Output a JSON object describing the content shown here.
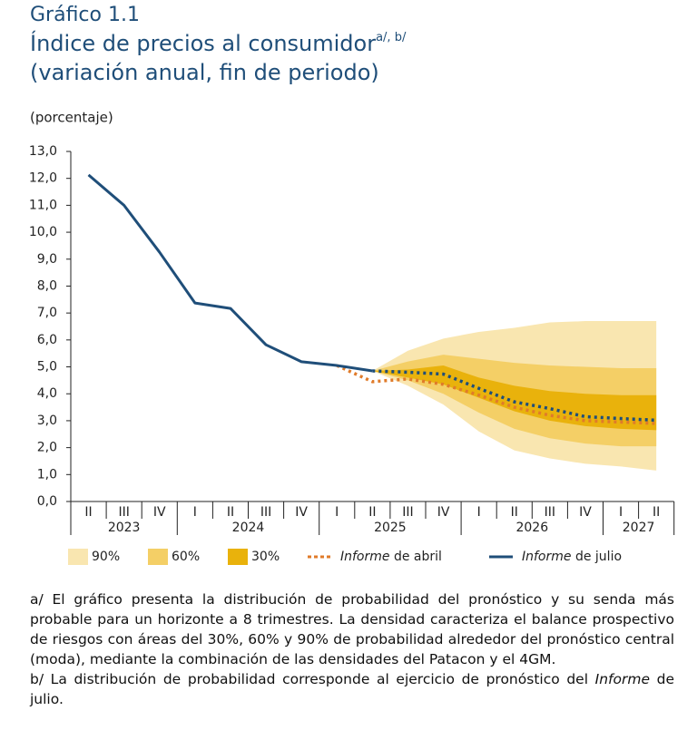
{
  "chart_data": {
    "type": "fan",
    "title": "Gráfico 1.1",
    "subtitle": "Índice de precios al consumidor",
    "subtitle_note": "a/, b/",
    "subtitle2": "(variación anual, fin de periodo)",
    "y_label": "(porcentaje)",
    "categories": [
      "II",
      "III",
      "IV",
      "I",
      "II",
      "III",
      "IV",
      "I",
      "II",
      "III",
      "IV",
      "I",
      "II",
      "III",
      "IV",
      "I",
      "II"
    ],
    "year_labels": [
      "2023",
      "2024",
      "2025",
      "2026",
      "2027"
    ],
    "ylim": [
      0,
      13
    ],
    "yticks": [
      {
        "value": 0,
        "label": "0,0"
      },
      {
        "value": 1,
        "label": "1,0"
      },
      {
        "value": 2,
        "label": "2,0"
      },
      {
        "value": 3,
        "label": "3,0"
      },
      {
        "value": 4,
        "label": "4,0"
      },
      {
        "value": 5,
        "label": "5,0"
      },
      {
        "value": 6,
        "label": "6,0"
      },
      {
        "value": 7,
        "label": "7,0"
      },
      {
        "value": 8,
        "label": "8,0"
      },
      {
        "value": 9,
        "label": "9,0"
      },
      {
        "value": 10,
        "label": "10,0"
      },
      {
        "value": 11,
        "label": "11,0"
      },
      {
        "value": 12,
        "label": "12,0"
      },
      {
        "value": 13,
        "label": "13,0"
      }
    ],
    "bands": [
      {
        "name": "90%",
        "color": "#f9e6b0",
        "upper": [
          null,
          null,
          null,
          null,
          null,
          null,
          null,
          null,
          4.85,
          5.6,
          6.05,
          6.3,
          6.45,
          6.65,
          6.7,
          6.7,
          6.7
        ],
        "lower": [
          null,
          null,
          null,
          null,
          null,
          null,
          null,
          null,
          4.85,
          4.3,
          3.6,
          2.6,
          1.9,
          1.6,
          1.4,
          1.3,
          1.15
        ]
      },
      {
        "name": "60%",
        "color": "#f4cf66",
        "upper": [
          null,
          null,
          null,
          null,
          null,
          null,
          null,
          null,
          4.85,
          5.2,
          5.45,
          5.3,
          5.15,
          5.05,
          5.0,
          4.95,
          4.95
        ],
        "lower": [
          null,
          null,
          null,
          null,
          null,
          null,
          null,
          null,
          4.85,
          4.5,
          4.0,
          3.3,
          2.7,
          2.35,
          2.15,
          2.05,
          2.05
        ]
      },
      {
        "name": "30%",
        "color": "#e9b20c",
        "upper": [
          null,
          null,
          null,
          null,
          null,
          null,
          null,
          null,
          4.85,
          4.9,
          5.05,
          4.6,
          4.3,
          4.1,
          4.0,
          3.95,
          3.95
        ],
        "lower": [
          null,
          null,
          null,
          null,
          null,
          null,
          null,
          null,
          4.85,
          4.6,
          4.35,
          3.85,
          3.35,
          3.0,
          2.8,
          2.7,
          2.65
        ]
      }
    ],
    "series": [
      {
        "name": "Informe de abril",
        "color": "#e07b2a",
        "values": [
          null,
          null,
          null,
          null,
          null,
          null,
          null,
          5.05,
          4.45,
          4.55,
          4.35,
          3.95,
          3.5,
          3.2,
          3.0,
          2.95,
          2.9
        ]
      },
      {
        "name": "Informe de julio",
        "color": "#1f4e79",
        "values": [
          12.13,
          11.0,
          9.26,
          7.37,
          7.17,
          5.82,
          5.19,
          5.05,
          4.85,
          null,
          null,
          null,
          null,
          null,
          null,
          null,
          null
        ],
        "forecast": [
          null,
          null,
          null,
          null,
          null,
          null,
          null,
          null,
          4.85,
          4.8,
          4.73,
          4.2,
          3.7,
          3.45,
          3.15,
          3.08,
          3.02
        ]
      }
    ]
  },
  "notes": [
    [
      "a/ El gráfico presenta la distribución de probabilidad del pronóstico y su senda más probable para un horizonte a 8 trimestres. La densidad caracteriza el balance prospectivo de riesgos con áreas del 30%, 60% y 90% de probabilidad alrededor del pronóstico central (moda), mediante la combinación de las densidades del Patacon y el 4GM."
    ],
    [
      "b/ La distribución de probabilidad corresponde al ejercicio de pronóstico del ",
      "Informe",
      " de julio."
    ]
  ]
}
